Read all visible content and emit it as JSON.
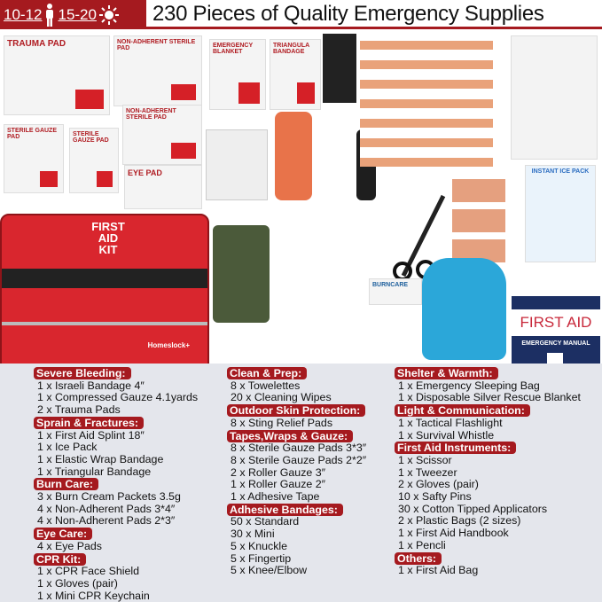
{
  "header": {
    "age1": "10-12",
    "age2": "15-20",
    "title": "230 Pieces of Quality Emergency Supplies",
    "person_icon": "person-icon",
    "sun_icon": "sun-icon"
  },
  "colors": {
    "brand_red": "#a51a1f",
    "list_bg": "#e4e6ec",
    "manual_navy": "#1c2f63"
  },
  "products": {
    "trauma_pad": "TRAUMA PAD",
    "non_adherent": "NON-ADHERENT STERILE PAD",
    "emergency_blanket": "EMERGENCY BLANKET",
    "triangular": "TRIANGULA BANDAGE",
    "gauze": "STERILE GAUZE PAD",
    "eye_pad": "EYE PAD",
    "bag_label": "FIRST AID KIT",
    "bag_brand": "Homeslock+",
    "burncare": "BURNCARE",
    "ice_pack": "INSTANT ICE PACK",
    "manual_title": "FIRST AID",
    "manual_sub": "EMERGENCY MANUAL"
  },
  "columns": [
    [
      {
        "heading": "Severe Bleeding:",
        "items": [
          "1 x Israeli Bandage 4″",
          "1 x Compressed Gauze 4.1yards",
          "2 x Trauma Pads"
        ]
      },
      {
        "heading": "Sprain & Fractures:",
        "items": [
          "1 x First Aid Splint 18″",
          "1 x Ice Pack",
          "1 x Elastic Wrap Bandage",
          "1 x Triangular Bandage"
        ]
      },
      {
        "heading": "Burn Care:",
        "items": [
          "3 x Burn Cream Packets 3.5g",
          "4 x Non-Adherent Pads 3*4″",
          "4 x Non-Adherent Pads 2*3″"
        ]
      },
      {
        "heading": "Eye Care:",
        "items": [
          "4 x Eye Pads"
        ]
      },
      {
        "heading": "CPR Kit:",
        "items": [
          "1 x CPR Face Shield",
          "1 x Gloves (pair)",
          "1 x Mini CPR Keychain"
        ]
      }
    ],
    [
      {
        "heading": "Clean & Prep:",
        "items": [
          "8 x Towelettes",
          "20 x Cleaning Wipes"
        ]
      },
      {
        "heading": "Outdoor Skin Protection:",
        "items": [
          "8 x Sting Relief Pads"
        ]
      },
      {
        "heading": "Tapes,Wraps & Gauze:",
        "items": [
          "8 x Sterile Gauze Pads 3*3″",
          "8 x Sterile Gauze Pads 2*2″",
          "2 x Roller Gauze 3″",
          "1 x Roller Gauze 2″",
          "1 x Adhesive Tape"
        ]
      },
      {
        "heading": "Adhesive Bandages:",
        "items": [
          "50 x Standard",
          "30 x Mini",
          "5 x Knuckle",
          "5 x Fingertip",
          "5 x Knee/Elbow"
        ]
      }
    ],
    [
      {
        "heading": "Shelter & Warmth:",
        "items": [
          "1 x Emergency Sleeping Bag",
          "1 x Disposable Silver Rescue Blanket"
        ]
      },
      {
        "heading": "Light & Communication:",
        "items": [
          "1 x Tactical Flashlight",
          "1 x Survival Whistle"
        ]
      },
      {
        "heading": "First Aid Instruments:",
        "items": [
          "1 x Scissor",
          "1 x Tweezer",
          "2 x Gloves (pair)",
          "10 x Safty Pins",
          "30 x Cotton Tipped Applicators",
          "2 x Plastic Bags (2 sizes)",
          "1 x First Aid Handbook",
          "1 x Pencli"
        ]
      },
      {
        "heading": "Others:",
        "items": [
          "1 x First Aid Bag"
        ]
      }
    ]
  ]
}
